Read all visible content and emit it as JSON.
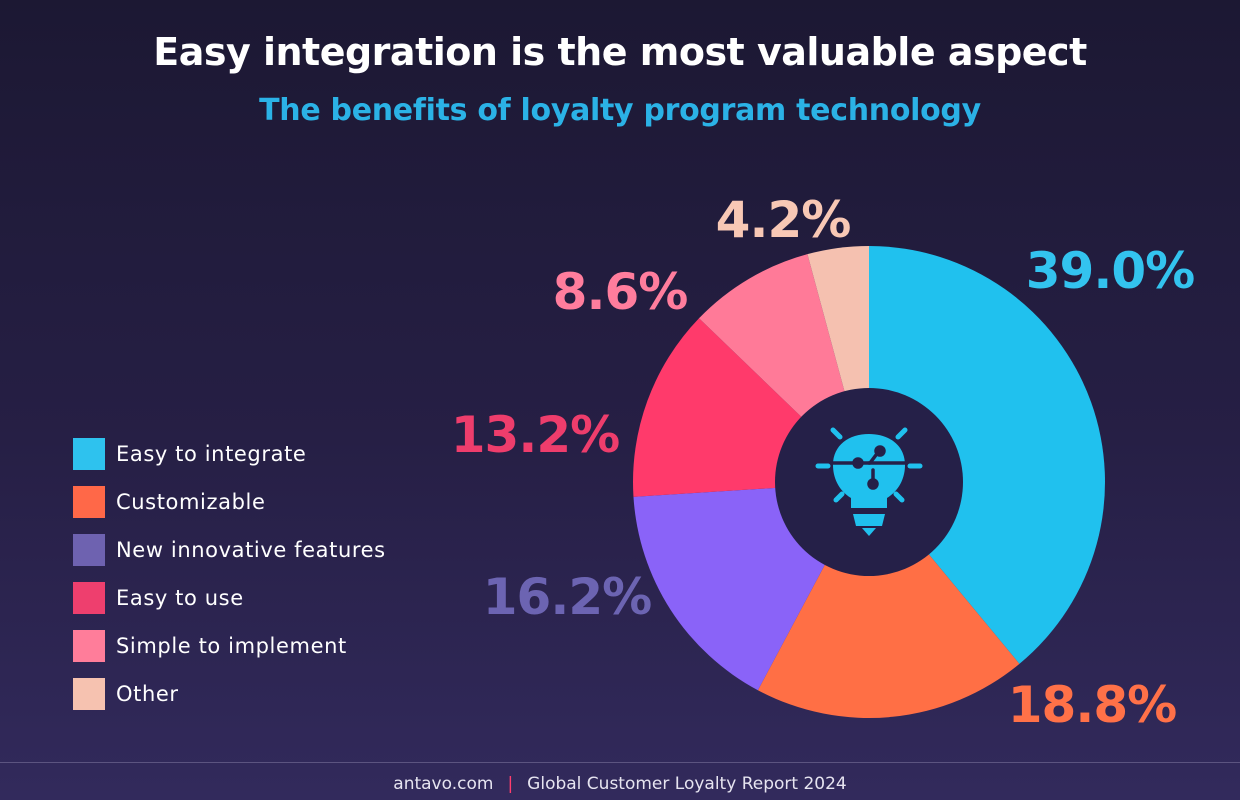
{
  "title": "Easy integration is the most valuable aspect",
  "subtitle": "The benefits of loyalty program technology",
  "footer": {
    "site": "antavo.com",
    "separator": "|",
    "report": "Global Customer Loyalty Report 2024"
  },
  "center_icon": "lightbulb-circuit-icon",
  "colors": {
    "background": "#1c1833",
    "subtitle": "#2bb2e6",
    "center_hole": "#252048"
  },
  "chart_data": {
    "type": "pie",
    "style": "donut",
    "title": "Easy integration is the most valuable aspect",
    "subtitle": "The benefits of loyalty program technology",
    "legend_position": "left",
    "categories": [
      "Easy to integrate",
      "Customizable",
      "New innovative features",
      "Easy to use",
      "Simple to implement",
      "Other"
    ],
    "values": [
      39.0,
      18.8,
      16.2,
      13.2,
      8.6,
      4.2
    ],
    "labels": [
      "39.0%",
      "18.8%",
      "16.2%",
      "13.2%",
      "8.6%",
      "4.2%"
    ],
    "slice_colors": [
      "#20c1ee",
      "#ff6f45",
      "#8a63f8",
      "#ff3a6b",
      "#ff7a98",
      "#f5c1b0"
    ],
    "label_colors": [
      "#33c3ef",
      "#ff7148",
      "#6c64b2",
      "#ee3d6c",
      "#ff7d9d",
      "#f8c8b5"
    ],
    "legend_colors": [
      "#2ec2ee",
      "#ff6848",
      "#6e62b0",
      "#ee3f6e",
      "#ff7d9a",
      "#f6c2b0"
    ]
  }
}
